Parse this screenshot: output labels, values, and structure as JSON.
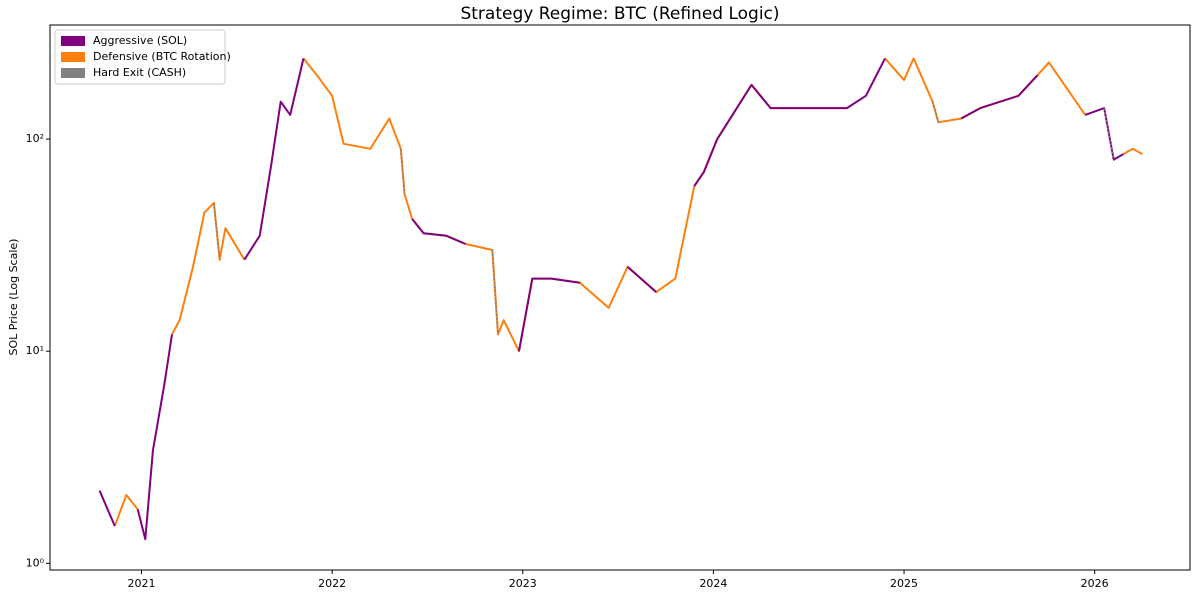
{
  "chart_data": {
    "type": "line",
    "title": "Strategy Regime: BTC (Refined Logic)",
    "y_label": "SOL Price (Log Scale)",
    "log_y": true,
    "legend": "upper left",
    "xlim": [
      2020.52,
      2026.5
    ],
    "xticks": [
      2021,
      2022,
      2023,
      2024,
      2025,
      2026
    ],
    "ylim": [
      0.93,
      345
    ],
    "yticks": [
      {
        "value": 1,
        "label": "10⁰"
      },
      {
        "value": 10,
        "label": "10¹"
      },
      {
        "value": 100,
        "label": "10²"
      }
    ],
    "x": [
      2020.78,
      2020.86,
      2020.92,
      2020.98,
      2021.02,
      2021.06,
      2021.12,
      2021.16,
      2021.2,
      2021.27,
      2021.33,
      2021.38,
      2021.41,
      2021.44,
      2021.54,
      2021.62,
      2021.68,
      2021.73,
      2021.78,
      2021.85,
      2021.92,
      2022.0,
      2022.06,
      2022.2,
      2022.3,
      2022.36,
      2022.38,
      2022.42,
      2022.48,
      2022.6,
      2022.7,
      2022.84,
      2022.87,
      2022.9,
      2022.98,
      2023.05,
      2023.15,
      2023.3,
      2023.45,
      2023.55,
      2023.7,
      2023.8,
      2023.9,
      2023.95,
      2024.02,
      2024.2,
      2024.3,
      2024.5,
      2024.7,
      2024.8,
      2024.9,
      2025.0,
      2025.05,
      2025.15,
      2025.18,
      2025.3,
      2025.4,
      2025.6,
      2025.7,
      2025.76,
      2025.95,
      2026.05,
      2026.1,
      2026.15,
      2026.2,
      2026.25
    ],
    "series": [
      {
        "name": "Defensive (BTC Rotation)",
        "color": "#ff7f0e",
        "values": [
          null,
          1.5,
          2.1,
          1.8,
          null,
          null,
          null,
          12,
          14,
          25,
          45,
          50,
          27,
          38,
          27,
          null,
          null,
          null,
          null,
          240,
          200,
          160,
          95,
          90,
          125,
          90,
          55,
          42,
          36,
          35,
          32,
          30,
          12,
          14,
          10,
          22,
          22,
          21,
          16,
          25,
          19,
          22,
          60,
          70,
          100,
          180,
          140,
          140,
          140,
          null,
          240,
          190,
          240,
          150,
          120,
          125,
          140,
          160,
          200,
          230,
          130,
          null,
          null,
          85,
          90,
          85
        ]
      },
      {
        "name": "Aggressive (SOL)",
        "color": "#800080",
        "values": [
          2.2,
          1.5,
          null,
          1.8,
          1.3,
          3.4,
          7,
          12,
          null,
          null,
          null,
          null,
          null,
          null,
          27,
          35,
          75,
          150,
          130,
          240,
          null,
          null,
          null,
          null,
          null,
          null,
          null,
          42,
          36,
          35,
          32,
          null,
          null,
          null,
          10,
          22,
          22,
          21,
          null,
          25,
          19,
          null,
          60,
          70,
          100,
          180,
          140,
          140,
          140,
          160,
          240,
          null,
          null,
          null,
          null,
          125,
          140,
          160,
          200,
          null,
          130,
          140,
          80,
          85,
          null,
          null
        ]
      },
      {
        "name": "Hard Exit (CASH)",
        "color": "#808080",
        "dashed": true,
        "values": [
          null,
          null,
          null,
          null,
          null,
          null,
          null,
          null,
          null,
          null,
          null,
          50,
          27,
          null,
          null,
          null,
          null,
          null,
          null,
          null,
          null,
          null,
          null,
          null,
          null,
          90,
          55,
          null,
          null,
          null,
          null,
          30,
          12,
          null,
          null,
          null,
          null,
          null,
          null,
          null,
          null,
          null,
          null,
          null,
          null,
          null,
          null,
          null,
          null,
          null,
          null,
          null,
          null,
          150,
          120,
          null,
          null,
          null,
          null,
          null,
          null,
          140,
          80,
          null,
          null,
          null
        ]
      }
    ],
    "legend_order": [
      1,
      0,
      2
    ]
  }
}
